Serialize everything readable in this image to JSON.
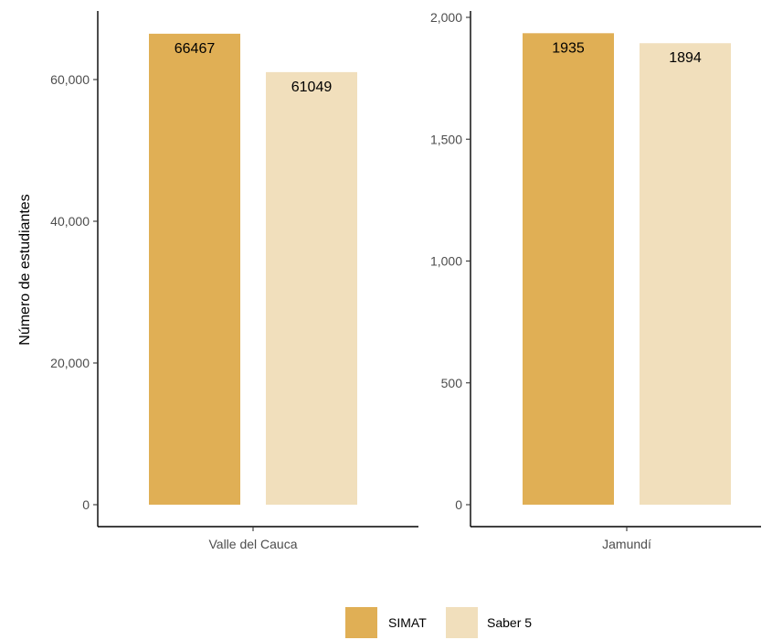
{
  "chart_data": [
    {
      "type": "bar",
      "categories": [
        "Valle del Cauca"
      ],
      "series": [
        {
          "name": "SIMAT",
          "values": [
            66467
          ]
        },
        {
          "name": "Saber 5",
          "values": [
            61049
          ]
        }
      ],
      "data_labels": [
        "66467",
        "61049"
      ],
      "ylabel": "Número de estudiantes",
      "ylim": [
        0,
        70000
      ],
      "yticks": [
        0,
        20000,
        40000,
        60000
      ],
      "ytick_labels": [
        "0",
        "20,000",
        "40,000",
        "60,000"
      ],
      "grid": false
    },
    {
      "type": "bar",
      "categories": [
        "Jamundí"
      ],
      "series": [
        {
          "name": "SIMAT",
          "values": [
            1935
          ]
        },
        {
          "name": "Saber 5",
          "values": [
            1894
          ]
        }
      ],
      "data_labels": [
        "1935",
        "1894"
      ],
      "ylim": [
        0,
        2000
      ],
      "yticks": [
        0,
        500,
        1000,
        1500,
        2000
      ],
      "ytick_labels": [
        "0",
        "500",
        "1,000",
        "1,500",
        "2,000"
      ],
      "grid": false
    }
  ],
  "legend": {
    "placement": "bottom",
    "items": [
      {
        "name": "SIMAT",
        "color": "#E0AF55"
      },
      {
        "name": "Saber 5",
        "color": "#F1DFBC"
      }
    ]
  },
  "colors": {
    "SIMAT": "#E0AF55",
    "Saber 5": "#F1DFBC"
  }
}
